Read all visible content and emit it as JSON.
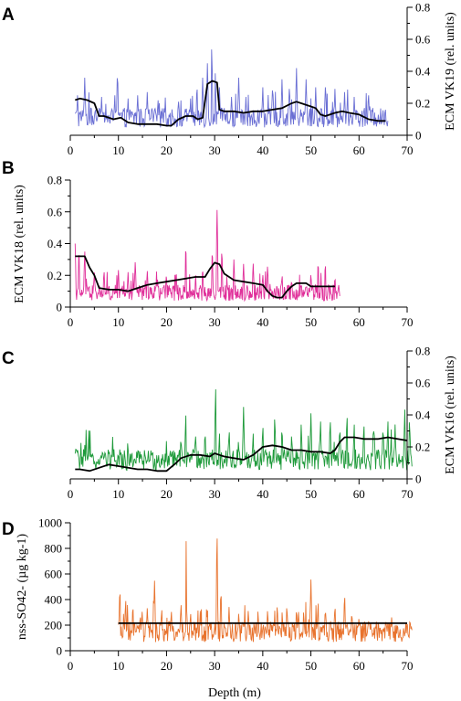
{
  "chart_data": [
    {
      "panel": "A",
      "type": "line",
      "ylabel": "ECM VK19 (rel. units)",
      "y_axis_side": "right",
      "xlim": [
        0,
        70
      ],
      "ylim": [
        0,
        0.8
      ],
      "x_ticks": [
        0,
        10,
        20,
        30,
        40,
        50,
        60,
        70
      ],
      "y_ticks": [
        0,
        0.2,
        0.4,
        0.6,
        0.8
      ],
      "series": [
        {
          "color": "#6a6fd4",
          "kind": "raw",
          "x_range": [
            1,
            66
          ],
          "baseline": 0.11,
          "spikes": [
            [
              1.5,
              0.25
            ],
            [
              3,
              0.36
            ],
            [
              6.5,
              0.24
            ],
            [
              9.8,
              0.42
            ],
            [
              12,
              0.23
            ],
            [
              14,
              0.25
            ],
            [
              16,
              0.27
            ],
            [
              18.5,
              0.2
            ],
            [
              22.5,
              0.21
            ],
            [
              25,
              0.23
            ],
            [
              27.5,
              0.36
            ],
            [
              28.5,
              0.45
            ],
            [
              29.4,
              0.58
            ],
            [
              30.2,
              0.5
            ],
            [
              31,
              0.3
            ],
            [
              33.5,
              0.24
            ],
            [
              35,
              0.36
            ],
            [
              36.5,
              0.24
            ],
            [
              40,
              0.3
            ],
            [
              42,
              0.28
            ],
            [
              44,
              0.35
            ],
            [
              45.5,
              0.29
            ],
            [
              47,
              0.42
            ],
            [
              49,
              0.35
            ],
            [
              51,
              0.3
            ],
            [
              53,
              0.3
            ],
            [
              55,
              0.29
            ],
            [
              57,
              0.27
            ],
            [
              59,
              0.24
            ],
            [
              62,
              0.25
            ]
          ]
        },
        {
          "color": "#000000",
          "kind": "smoothed",
          "points": [
            [
              1,
              0.22
            ],
            [
              2,
              0.23
            ],
            [
              3.5,
              0.22
            ],
            [
              5,
              0.2
            ],
            [
              6,
              0.12
            ],
            [
              7,
              0.12
            ],
            [
              9,
              0.1
            ],
            [
              10.5,
              0.11
            ],
            [
              12,
              0.08
            ],
            [
              14,
              0.07
            ],
            [
              16,
              0.07
            ],
            [
              18,
              0.07
            ],
            [
              20,
              0.06
            ],
            [
              21,
              0.06
            ],
            [
              22.5,
              0.1
            ],
            [
              24,
              0.12
            ],
            [
              25.5,
              0.12
            ],
            [
              26.5,
              0.1
            ],
            [
              27.5,
              0.11
            ],
            [
              28.5,
              0.32
            ],
            [
              29.5,
              0.34
            ],
            [
              30.5,
              0.33
            ],
            [
              31,
              0.16
            ],
            [
              32,
              0.15
            ],
            [
              34,
              0.15
            ],
            [
              36,
              0.14
            ],
            [
              38,
              0.15
            ],
            [
              40,
              0.15
            ],
            [
              42,
              0.16
            ],
            [
              44,
              0.17
            ],
            [
              46,
              0.2
            ],
            [
              47,
              0.21
            ],
            [
              48,
              0.2
            ],
            [
              50,
              0.18
            ],
            [
              51,
              0.17
            ],
            [
              52,
              0.13
            ],
            [
              53,
              0.12
            ],
            [
              55,
              0.14
            ],
            [
              56.5,
              0.15
            ],
            [
              58,
              0.14
            ],
            [
              60,
              0.13
            ],
            [
              62,
              0.1
            ],
            [
              64,
              0.09
            ],
            [
              65.5,
              0.09
            ]
          ]
        }
      ]
    },
    {
      "panel": "B",
      "type": "line",
      "ylabel": "ECM VK18 (rel. units)",
      "y_axis_side": "left",
      "xlim": [
        0,
        70
      ],
      "ylim": [
        0,
        0.8
      ],
      "x_ticks": [
        0,
        10,
        20,
        30,
        40,
        50,
        60,
        70
      ],
      "y_ticks": [
        0,
        0.2,
        0.4,
        0.6,
        0.8
      ],
      "series": [
        {
          "color": "#e0309a",
          "kind": "raw",
          "x_range": [
            1,
            56
          ],
          "baseline": 0.09,
          "spikes": [
            [
              1,
              0.4
            ],
            [
              1.8,
              0.38
            ],
            [
              3,
              0.36
            ],
            [
              5,
              0.23
            ],
            [
              7,
              0.24
            ],
            [
              10,
              0.24
            ],
            [
              12,
              0.22
            ],
            [
              13.5,
              0.3
            ],
            [
              16,
              0.24
            ],
            [
              18,
              0.29
            ],
            [
              20,
              0.24
            ],
            [
              22,
              0.24
            ],
            [
              24,
              0.41
            ],
            [
              26,
              0.25
            ],
            [
              27.5,
              0.26
            ],
            [
              29.5,
              0.38
            ],
            [
              30.5,
              0.63
            ],
            [
              31.5,
              0.38
            ],
            [
              34,
              0.3
            ],
            [
              36,
              0.28
            ],
            [
              38,
              0.29
            ],
            [
              40,
              0.22
            ],
            [
              41,
              0.27
            ],
            [
              44,
              0.2
            ],
            [
              46,
              0.18
            ],
            [
              50,
              0.22
            ],
            [
              51.5,
              0.3
            ],
            [
              53,
              0.29
            ],
            [
              55,
              0.2
            ]
          ]
        },
        {
          "color": "#000000",
          "kind": "smoothed",
          "points": [
            [
              1,
              0.32
            ],
            [
              2,
              0.32
            ],
            [
              3,
              0.32
            ],
            [
              4,
              0.25
            ],
            [
              5,
              0.2
            ],
            [
              6,
              0.12
            ],
            [
              8,
              0.11
            ],
            [
              10,
              0.11
            ],
            [
              12,
              0.1
            ],
            [
              14,
              0.12
            ],
            [
              16,
              0.14
            ],
            [
              18,
              0.15
            ],
            [
              20,
              0.16
            ],
            [
              22,
              0.17
            ],
            [
              24,
              0.18
            ],
            [
              26,
              0.19
            ],
            [
              28,
              0.19
            ],
            [
              29,
              0.24
            ],
            [
              30,
              0.28
            ],
            [
              31,
              0.27
            ],
            [
              32,
              0.21
            ],
            [
              34,
              0.17
            ],
            [
              36,
              0.16
            ],
            [
              38,
              0.15
            ],
            [
              40,
              0.14
            ],
            [
              41,
              0.1
            ],
            [
              42,
              0.07
            ],
            [
              43,
              0.06
            ],
            [
              44,
              0.06
            ],
            [
              45,
              0.1
            ],
            [
              46,
              0.13
            ],
            [
              47,
              0.15
            ],
            [
              49,
              0.15
            ],
            [
              50,
              0.13
            ],
            [
              52,
              0.13
            ],
            [
              55,
              0.13
            ]
          ]
        }
      ]
    },
    {
      "panel": "C",
      "type": "line",
      "ylabel": "ECM VK16 (rel. units)",
      "y_axis_side": "right",
      "xlim": [
        0,
        70
      ],
      "ylim": [
        0,
        0.8
      ],
      "x_ticks": [
        0,
        10,
        20,
        30,
        40,
        50,
        60,
        70
      ],
      "y_ticks": [
        0,
        0.2,
        0.4,
        0.6,
        0.8
      ],
      "series": [
        {
          "color": "#1e9a3a",
          "kind": "raw",
          "x_range": [
            1,
            71
          ],
          "baseline": 0.12,
          "spikes": [
            [
              1.2,
              0.23
            ],
            [
              5,
              0.12
            ],
            [
              8,
              0.16
            ],
            [
              10,
              0.15
            ],
            [
              12,
              0.14
            ],
            [
              14,
              0.16
            ],
            [
              17,
              0.14
            ],
            [
              21,
              0.18
            ],
            [
              23,
              0.28
            ],
            [
              24,
              0.42
            ],
            [
              26,
              0.3
            ],
            [
              28,
              0.32
            ],
            [
              30.2,
              0.58
            ],
            [
              31,
              0.3
            ],
            [
              33,
              0.33
            ],
            [
              35,
              0.3
            ],
            [
              36,
              0.45
            ],
            [
              38,
              0.3
            ],
            [
              40,
              0.36
            ],
            [
              42.5,
              0.42
            ],
            [
              44,
              0.35
            ],
            [
              46,
              0.3
            ],
            [
              48,
              0.36
            ],
            [
              50,
              0.41
            ],
            [
              52,
              0.38
            ],
            [
              54,
              0.4
            ],
            [
              56,
              0.35
            ],
            [
              57.5,
              0.43
            ],
            [
              59,
              0.36
            ],
            [
              61,
              0.37
            ],
            [
              63,
              0.36
            ],
            [
              65,
              0.35
            ],
            [
              66,
              0.38
            ],
            [
              67.5,
              0.34
            ],
            [
              69.5,
              0.46
            ],
            [
              70.5,
              0.4
            ]
          ]
        },
        {
          "color": "#000000",
          "kind": "smoothed",
          "points": [
            [
              1,
              0.06
            ],
            [
              2,
              0.06
            ],
            [
              4,
              0.05
            ],
            [
              6,
              0.07
            ],
            [
              8,
              0.09
            ],
            [
              10,
              0.08
            ],
            [
              12,
              0.07
            ],
            [
              14,
              0.06
            ],
            [
              16,
              0.06
            ],
            [
              18,
              0.05
            ],
            [
              20,
              0.05
            ],
            [
              22,
              0.1
            ],
            [
              23,
              0.13
            ],
            [
              25,
              0.15
            ],
            [
              27,
              0.15
            ],
            [
              29,
              0.14
            ],
            [
              30,
              0.16
            ],
            [
              31,
              0.15
            ],
            [
              32,
              0.14
            ],
            [
              34,
              0.13
            ],
            [
              36,
              0.12
            ],
            [
              38,
              0.15
            ],
            [
              40,
              0.2
            ],
            [
              42,
              0.21
            ],
            [
              44,
              0.2
            ],
            [
              46,
              0.18
            ],
            [
              48,
              0.18
            ],
            [
              50,
              0.17
            ],
            [
              52,
              0.17
            ],
            [
              54,
              0.16
            ],
            [
              55,
              0.18
            ],
            [
              56,
              0.23
            ],
            [
              57,
              0.26
            ],
            [
              59,
              0.26
            ],
            [
              61,
              0.25
            ],
            [
              64,
              0.25
            ],
            [
              66,
              0.26
            ],
            [
              68,
              0.25
            ],
            [
              70,
              0.24
            ]
          ]
        }
      ]
    },
    {
      "panel": "D",
      "type": "line",
      "xlabel": "Depth (m)",
      "ylabel": "nss-SO42- (µg kg-1)",
      "y_axis_side": "left",
      "xlim": [
        0,
        70
      ],
      "ylim": [
        0,
        1000
      ],
      "x_ticks": [
        0,
        10,
        20,
        30,
        40,
        50,
        60,
        70
      ],
      "y_ticks": [
        0,
        200,
        400,
        600,
        800,
        1000
      ],
      "series": [
        {
          "color": "#e8732e",
          "kind": "raw",
          "x_range": [
            10,
            71
          ],
          "baseline": 150,
          "spikes": [
            [
              10.3,
              520
            ],
            [
              11.5,
              420
            ],
            [
              13,
              380
            ],
            [
              15,
              390
            ],
            [
              16,
              350
            ],
            [
              17.5,
              560
            ],
            [
              19,
              350
            ],
            [
              21,
              330
            ],
            [
              23,
              380
            ],
            [
              24.1,
              920
            ],
            [
              25,
              300
            ],
            [
              27,
              320
            ],
            [
              28.5,
              350
            ],
            [
              30.5,
              960
            ],
            [
              31.3,
              500
            ],
            [
              33,
              350
            ],
            [
              35,
              300
            ],
            [
              37,
              330
            ],
            [
              39,
              330
            ],
            [
              41,
              340
            ],
            [
              43,
              380
            ],
            [
              45,
              380
            ],
            [
              47,
              350
            ],
            [
              48.5,
              320
            ],
            [
              50,
              560
            ],
            [
              51.5,
              400
            ],
            [
              53,
              350
            ],
            [
              55,
              380
            ],
            [
              57,
              470
            ],
            [
              58.5,
              320
            ],
            [
              60,
              270
            ],
            [
              62,
              250
            ],
            [
              64,
              250
            ],
            [
              66,
              240
            ],
            [
              68,
              230
            ],
            [
              70,
              250
            ]
          ]
        },
        {
          "color": "#000000",
          "kind": "smoothed",
          "points": [
            [
              10,
              215
            ],
            [
              70,
              215
            ]
          ]
        }
      ]
    }
  ]
}
